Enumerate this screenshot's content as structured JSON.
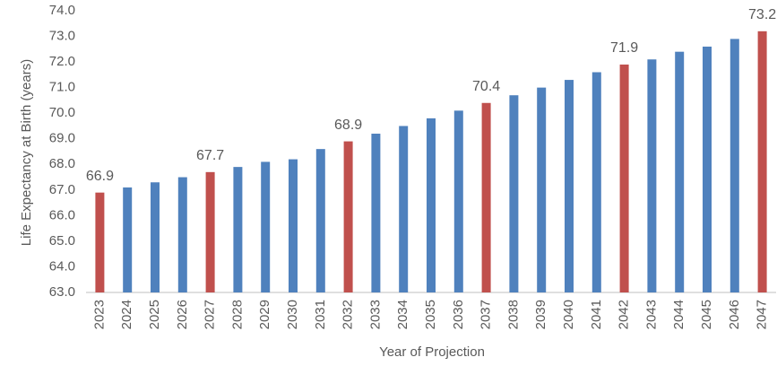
{
  "chart_data": {
    "type": "bar",
    "y_label": "Life Expectancy at Birth (years)",
    "x_label": "Year of Projection",
    "categories": [
      "2023",
      "2024",
      "2025",
      "2026",
      "2027",
      "2028",
      "2029",
      "2030",
      "2031",
      "2032",
      "2033",
      "2034",
      "2035",
      "2036",
      "2037",
      "2038",
      "2039",
      "2040",
      "2041",
      "2042",
      "2043",
      "2044",
      "2045",
      "2046",
      "2047"
    ],
    "values": [
      66.9,
      67.1,
      67.3,
      67.5,
      67.7,
      67.9,
      68.1,
      68.2,
      68.6,
      68.9,
      69.2,
      69.5,
      69.8,
      70.1,
      70.4,
      70.7,
      71.0,
      71.3,
      71.6,
      71.9,
      72.1,
      72.4,
      72.6,
      72.9,
      73.2
    ],
    "value_labels": [
      "66.9",
      null,
      null,
      null,
      "67.7",
      null,
      null,
      null,
      null,
      "68.9",
      null,
      null,
      null,
      null,
      "70.4",
      null,
      null,
      null,
      null,
      "71.9",
      null,
      null,
      null,
      null,
      "73.2"
    ],
    "colors": [
      "#c0504d",
      "#4f81bd",
      "#4f81bd",
      "#4f81bd",
      "#c0504d",
      "#4f81bd",
      "#4f81bd",
      "#4f81bd",
      "#4f81bd",
      "#c0504d",
      "#4f81bd",
      "#4f81bd",
      "#4f81bd",
      "#4f81bd",
      "#c0504d",
      "#4f81bd",
      "#4f81bd",
      "#4f81bd",
      "#4f81bd",
      "#c0504d",
      "#4f81bd",
      "#4f81bd",
      "#4f81bd",
      "#4f81bd",
      "#c0504d"
    ],
    "ylim": [
      63,
      74
    ],
    "yticks": [
      {
        "value": 63,
        "label": "63.0"
      },
      {
        "value": 64,
        "label": "64.0"
      },
      {
        "value": 65,
        "label": "65.0"
      },
      {
        "value": 66,
        "label": "66.0"
      },
      {
        "value": 67,
        "label": "67.0"
      },
      {
        "value": 68,
        "label": "68.0"
      },
      {
        "value": 69,
        "label": "69.0"
      },
      {
        "value": 70,
        "label": "70.0"
      },
      {
        "value": 71,
        "label": "71.0"
      },
      {
        "value": 72,
        "label": "72.0"
      },
      {
        "value": 73,
        "label": "73.0"
      },
      {
        "value": 74,
        "label": "74.0"
      }
    ],
    "grid": false
  }
}
